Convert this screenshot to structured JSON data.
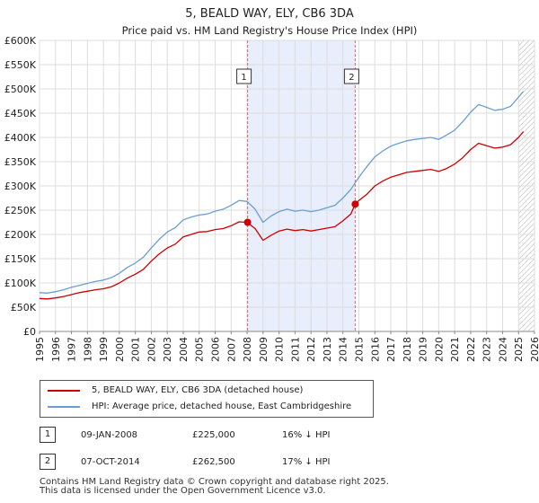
{
  "chart_data": {
    "type": "line",
    "title": "5, BEALD WAY, ELY, CB6 3DA",
    "subtitle": "Price paid vs. HM Land Registry's House Price Index (HPI)",
    "xlabel": "",
    "ylabel": "",
    "xlim": [
      1995,
      2026
    ],
    "ylim": [
      0,
      600000
    ],
    "x_ticks": [
      "1995",
      "1996",
      "1997",
      "1998",
      "1999",
      "2000",
      "2001",
      "2002",
      "2003",
      "2004",
      "2005",
      "2006",
      "2007",
      "2008",
      "2009",
      "2010",
      "2011",
      "2012",
      "2013",
      "2014",
      "2015",
      "2016",
      "2017",
      "2018",
      "2019",
      "2020",
      "2021",
      "2022",
      "2023",
      "2024",
      "2025",
      "2026"
    ],
    "y_ticks": [
      {
        "value": 0,
        "label": "£0"
      },
      {
        "value": 50000,
        "label": "£50K"
      },
      {
        "value": 100000,
        "label": "£100K"
      },
      {
        "value": 150000,
        "label": "£150K"
      },
      {
        "value": 200000,
        "label": "£200K"
      },
      {
        "value": 250000,
        "label": "£250K"
      },
      {
        "value": 300000,
        "label": "£300K"
      },
      {
        "value": 350000,
        "label": "£350K"
      },
      {
        "value": 400000,
        "label": "£400K"
      },
      {
        "value": 450000,
        "label": "£450K"
      },
      {
        "value": 500000,
        "label": "£500K"
      },
      {
        "value": 550000,
        "label": "£550K"
      },
      {
        "value": 600000,
        "label": "£600K"
      }
    ],
    "grid": true,
    "shaded_range": [
      2008.03,
      2014.77
    ],
    "hatch_from": 2025.0,
    "series": [
      {
        "name": "5, BEALD WAY, ELY, CB6 3DA (detached house)",
        "color": "#cc0000",
        "x": [
          1995.0,
          1995.5,
          1996.0,
          1996.5,
          1997.0,
          1997.5,
          1998.0,
          1998.5,
          1999.0,
          1999.5,
          2000.0,
          2000.5,
          2001.0,
          2001.5,
          2002.0,
          2002.5,
          2003.0,
          2003.5,
          2004.0,
          2004.5,
          2005.0,
          2005.5,
          2006.0,
          2006.5,
          2007.0,
          2007.5,
          2008.0,
          2008.5,
          2009.0,
          2009.5,
          2010.0,
          2010.5,
          2011.0,
          2011.5,
          2012.0,
          2012.5,
          2013.0,
          2013.5,
          2014.0,
          2014.5,
          2014.77,
          2015.0,
          2015.5,
          2016.0,
          2016.5,
          2017.0,
          2017.5,
          2018.0,
          2018.5,
          2019.0,
          2019.5,
          2020.0,
          2020.5,
          2021.0,
          2021.5,
          2022.0,
          2022.5,
          2023.0,
          2023.5,
          2024.0,
          2024.5,
          2025.0,
          2025.3
        ],
        "y": [
          68000,
          67000,
          69000,
          72000,
          76000,
          80000,
          83000,
          86000,
          88000,
          92000,
          100000,
          110000,
          118000,
          128000,
          145000,
          160000,
          172000,
          180000,
          195000,
          200000,
          205000,
          206000,
          210000,
          212000,
          218000,
          226000,
          225000,
          212000,
          188000,
          198000,
          207000,
          211000,
          208000,
          210000,
          207000,
          210000,
          213000,
          216000,
          228000,
          242000,
          262500,
          270000,
          283000,
          300000,
          310000,
          318000,
          323000,
          328000,
          330000,
          332000,
          334000,
          330000,
          336000,
          345000,
          358000,
          375000,
          388000,
          383000,
          378000,
          380000,
          385000,
          400000,
          412000
        ]
      },
      {
        "name": "HPI: Average price, detached house, East Cambridgeshire",
        "color": "#6a9ed4",
        "x": [
          1995.0,
          1995.5,
          1996.0,
          1996.5,
          1997.0,
          1997.5,
          1998.0,
          1998.5,
          1999.0,
          1999.5,
          2000.0,
          2000.5,
          2001.0,
          2001.5,
          2002.0,
          2002.5,
          2003.0,
          2003.5,
          2004.0,
          2004.5,
          2005.0,
          2005.5,
          2006.0,
          2006.5,
          2007.0,
          2007.5,
          2008.0,
          2008.5,
          2009.0,
          2009.5,
          2010.0,
          2010.5,
          2011.0,
          2011.5,
          2012.0,
          2012.5,
          2013.0,
          2013.5,
          2014.0,
          2014.5,
          2015.0,
          2015.5,
          2016.0,
          2016.5,
          2017.0,
          2017.5,
          2018.0,
          2018.5,
          2019.0,
          2019.5,
          2020.0,
          2020.5,
          2021.0,
          2021.5,
          2022.0,
          2022.5,
          2023.0,
          2023.5,
          2024.0,
          2024.5,
          2025.0,
          2025.3
        ],
        "y": [
          80000,
          79000,
          82000,
          86000,
          91000,
          95000,
          99000,
          103000,
          106000,
          111000,
          120000,
          132000,
          141000,
          153000,
          172000,
          190000,
          205000,
          214000,
          230000,
          236000,
          240000,
          242000,
          248000,
          252000,
          260000,
          270000,
          268000,
          252000,
          225000,
          238000,
          247000,
          252000,
          248000,
          250000,
          247000,
          250000,
          255000,
          260000,
          275000,
          293000,
          318000,
          340000,
          360000,
          372000,
          382000,
          388000,
          393000,
          396000,
          398000,
          400000,
          396000,
          405000,
          415000,
          432000,
          452000,
          468000,
          462000,
          456000,
          458000,
          464000,
          483000,
          495000
        ]
      }
    ],
    "sales": [
      {
        "label": "1",
        "x": 2008.03,
        "price": 225000
      },
      {
        "label": "2",
        "x": 2014.77,
        "price": 262500
      }
    ]
  },
  "legend": {
    "property_label": "5, BEALD WAY, ELY, CB6 3DA (detached house)",
    "hpi_label": "HPI: Average price, detached house, East Cambridgeshire",
    "property_color": "#cc0000",
    "hpi_color": "#6a9ed4"
  },
  "sales_table": [
    {
      "badge": "1",
      "date": "09-JAN-2008",
      "price": "£225,000",
      "hpi_delta": "16% ↓ HPI"
    },
    {
      "badge": "2",
      "date": "07-OCT-2014",
      "price": "£262,500",
      "hpi_delta": "17% ↓ HPI"
    }
  ],
  "footer": {
    "line1": "Contains HM Land Registry data © Crown copyright and database right 2025.",
    "line2": "This data is licensed under the Open Government Licence v3.0."
  }
}
